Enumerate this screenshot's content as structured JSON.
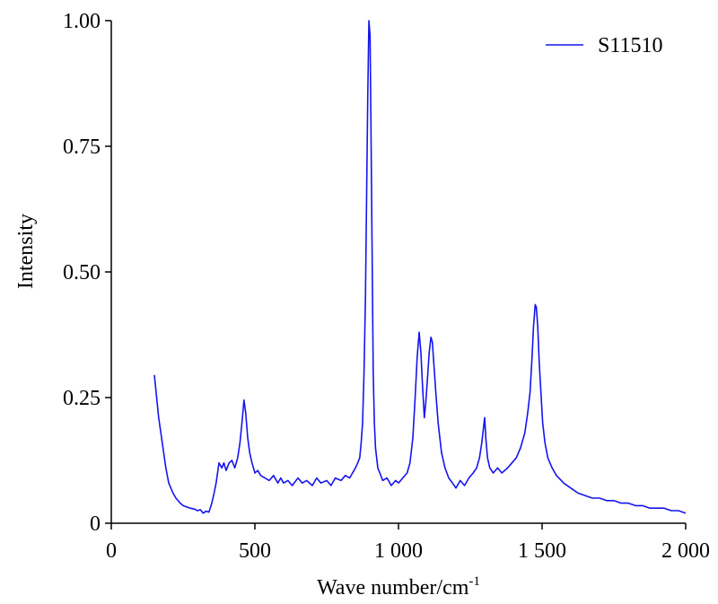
{
  "chart_data": {
    "type": "line",
    "y_label": "Intensity",
    "x_label": "Wave number/cm",
    "x_label_superscript": "-1",
    "x": [
      150,
      165,
      175,
      190,
      200,
      215,
      225,
      240,
      250,
      265,
      275,
      290,
      300,
      310,
      320,
      330,
      340,
      350,
      358,
      365,
      370,
      375,
      385,
      392,
      400,
      410,
      420,
      430,
      440,
      448,
      455,
      462,
      468,
      475,
      482,
      490,
      500,
      510,
      520,
      535,
      550,
      565,
      580,
      590,
      600,
      615,
      630,
      650,
      665,
      680,
      700,
      715,
      730,
      750,
      765,
      780,
      800,
      815,
      830,
      840,
      850,
      858,
      865,
      870,
      875,
      880,
      885,
      889,
      893,
      897,
      901,
      904,
      908,
      912,
      916,
      920,
      928,
      935,
      945,
      960,
      975,
      990,
      1000,
      1015,
      1030,
      1040,
      1050,
      1058,
      1065,
      1072,
      1078,
      1084,
      1090,
      1095,
      1100,
      1107,
      1113,
      1118,
      1124,
      1130,
      1138,
      1150,
      1162,
      1175,
      1188,
      1200,
      1215,
      1230,
      1245,
      1260,
      1272,
      1282,
      1290,
      1296,
      1300,
      1304,
      1310,
      1318,
      1330,
      1345,
      1360,
      1380,
      1395,
      1410,
      1425,
      1440,
      1450,
      1458,
      1465,
      1470,
      1476,
      1480,
      1485,
      1490,
      1496,
      1502,
      1510,
      1520,
      1535,
      1550,
      1575,
      1600,
      1625,
      1650,
      1675,
      1700,
      1725,
      1750,
      1775,
      1800,
      1825,
      1850,
      1875,
      1900,
      1925,
      1950,
      1975,
      2000
    ],
    "series": [
      {
        "name": "S11510",
        "color": "#1414f0",
        "values": [
          0.295,
          0.21,
          0.17,
          0.11,
          0.08,
          0.06,
          0.05,
          0.04,
          0.035,
          0.032,
          0.03,
          0.028,
          0.025,
          0.027,
          0.02,
          0.024,
          0.022,
          0.04,
          0.06,
          0.08,
          0.1,
          0.12,
          0.11,
          0.12,
          0.105,
          0.12,
          0.125,
          0.11,
          0.13,
          0.16,
          0.2,
          0.245,
          0.22,
          0.17,
          0.14,
          0.12,
          0.1,
          0.105,
          0.095,
          0.09,
          0.085,
          0.095,
          0.08,
          0.09,
          0.08,
          0.085,
          0.075,
          0.09,
          0.08,
          0.085,
          0.075,
          0.09,
          0.08,
          0.085,
          0.075,
          0.09,
          0.085,
          0.095,
          0.09,
          0.1,
          0.11,
          0.12,
          0.13,
          0.16,
          0.2,
          0.3,
          0.45,
          0.65,
          0.85,
          1.0,
          0.97,
          0.8,
          0.55,
          0.3,
          0.2,
          0.15,
          0.11,
          0.1,
          0.085,
          0.09,
          0.075,
          0.085,
          0.08,
          0.09,
          0.1,
          0.12,
          0.17,
          0.25,
          0.33,
          0.38,
          0.34,
          0.27,
          0.21,
          0.24,
          0.28,
          0.34,
          0.37,
          0.36,
          0.31,
          0.26,
          0.2,
          0.14,
          0.11,
          0.09,
          0.08,
          0.07,
          0.085,
          0.075,
          0.09,
          0.1,
          0.11,
          0.13,
          0.16,
          0.19,
          0.21,
          0.17,
          0.13,
          0.11,
          0.1,
          0.11,
          0.1,
          0.11,
          0.12,
          0.13,
          0.15,
          0.18,
          0.22,
          0.26,
          0.33,
          0.39,
          0.435,
          0.43,
          0.39,
          0.32,
          0.26,
          0.2,
          0.16,
          0.13,
          0.11,
          0.095,
          0.08,
          0.07,
          0.06,
          0.055,
          0.05,
          0.05,
          0.045,
          0.045,
          0.04,
          0.04,
          0.035,
          0.035,
          0.03,
          0.03,
          0.03,
          0.025,
          0.025,
          0.02
        ]
      }
    ],
    "xlim": [
      0,
      2000
    ],
    "ylim": [
      0,
      1.0
    ],
    "xticks": [
      0,
      500,
      {
        "value": 1000,
        "label": "1 000"
      },
      {
        "value": 1500,
        "label": "1 500"
      },
      {
        "value": 2000,
        "label": "2 000"
      }
    ],
    "yticks": [
      0,
      {
        "value": 0.25,
        "label": "0.25"
      },
      {
        "value": 0.5,
        "label": "0.50"
      },
      {
        "value": 0.75,
        "label": "0.75"
      },
      {
        "value": 1.0,
        "label": "1.00"
      }
    ],
    "legend": "upper right"
  }
}
